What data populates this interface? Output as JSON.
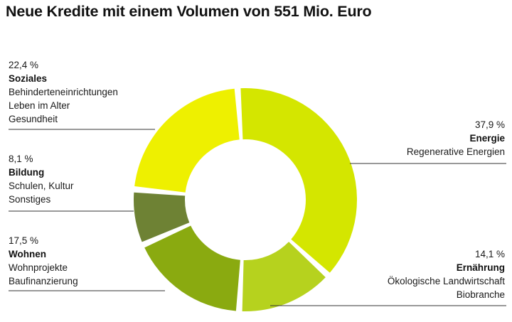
{
  "chart_data": {
    "type": "pie",
    "title": "Neue Kredite mit einem Volumen von 551 Mio. Euro",
    "slices": [
      {
        "name": "Energie",
        "value": 37.9,
        "value_label": "37,9 %",
        "details": [
          "Regenerative Energien"
        ],
        "color": "#d4e600"
      },
      {
        "name": "Ernährung",
        "value": 14.1,
        "value_label": "14,1 %",
        "details": [
          "Ökologische Landwirtschaft",
          "Biobranche"
        ],
        "color": "#b6d21e"
      },
      {
        "name": "Wohnen",
        "value": 17.5,
        "value_label": "17,5 %",
        "details": [
          "Wohnprojekte",
          "Baufinanzierung"
        ],
        "color": "#8aaa10"
      },
      {
        "name": "Bildung",
        "value": 8.1,
        "value_label": "8,1 %",
        "details": [
          "Schulen, Kultur",
          "Sonstiges"
        ],
        "color": "#6e8234"
      },
      {
        "name": "Soziales",
        "value": 22.4,
        "value_label": "22,4 %",
        "details": [
          "Behinderteneinrichtungen",
          "Leben im Alter",
          "Gesundheit"
        ],
        "color": "#eef000"
      }
    ]
  }
}
